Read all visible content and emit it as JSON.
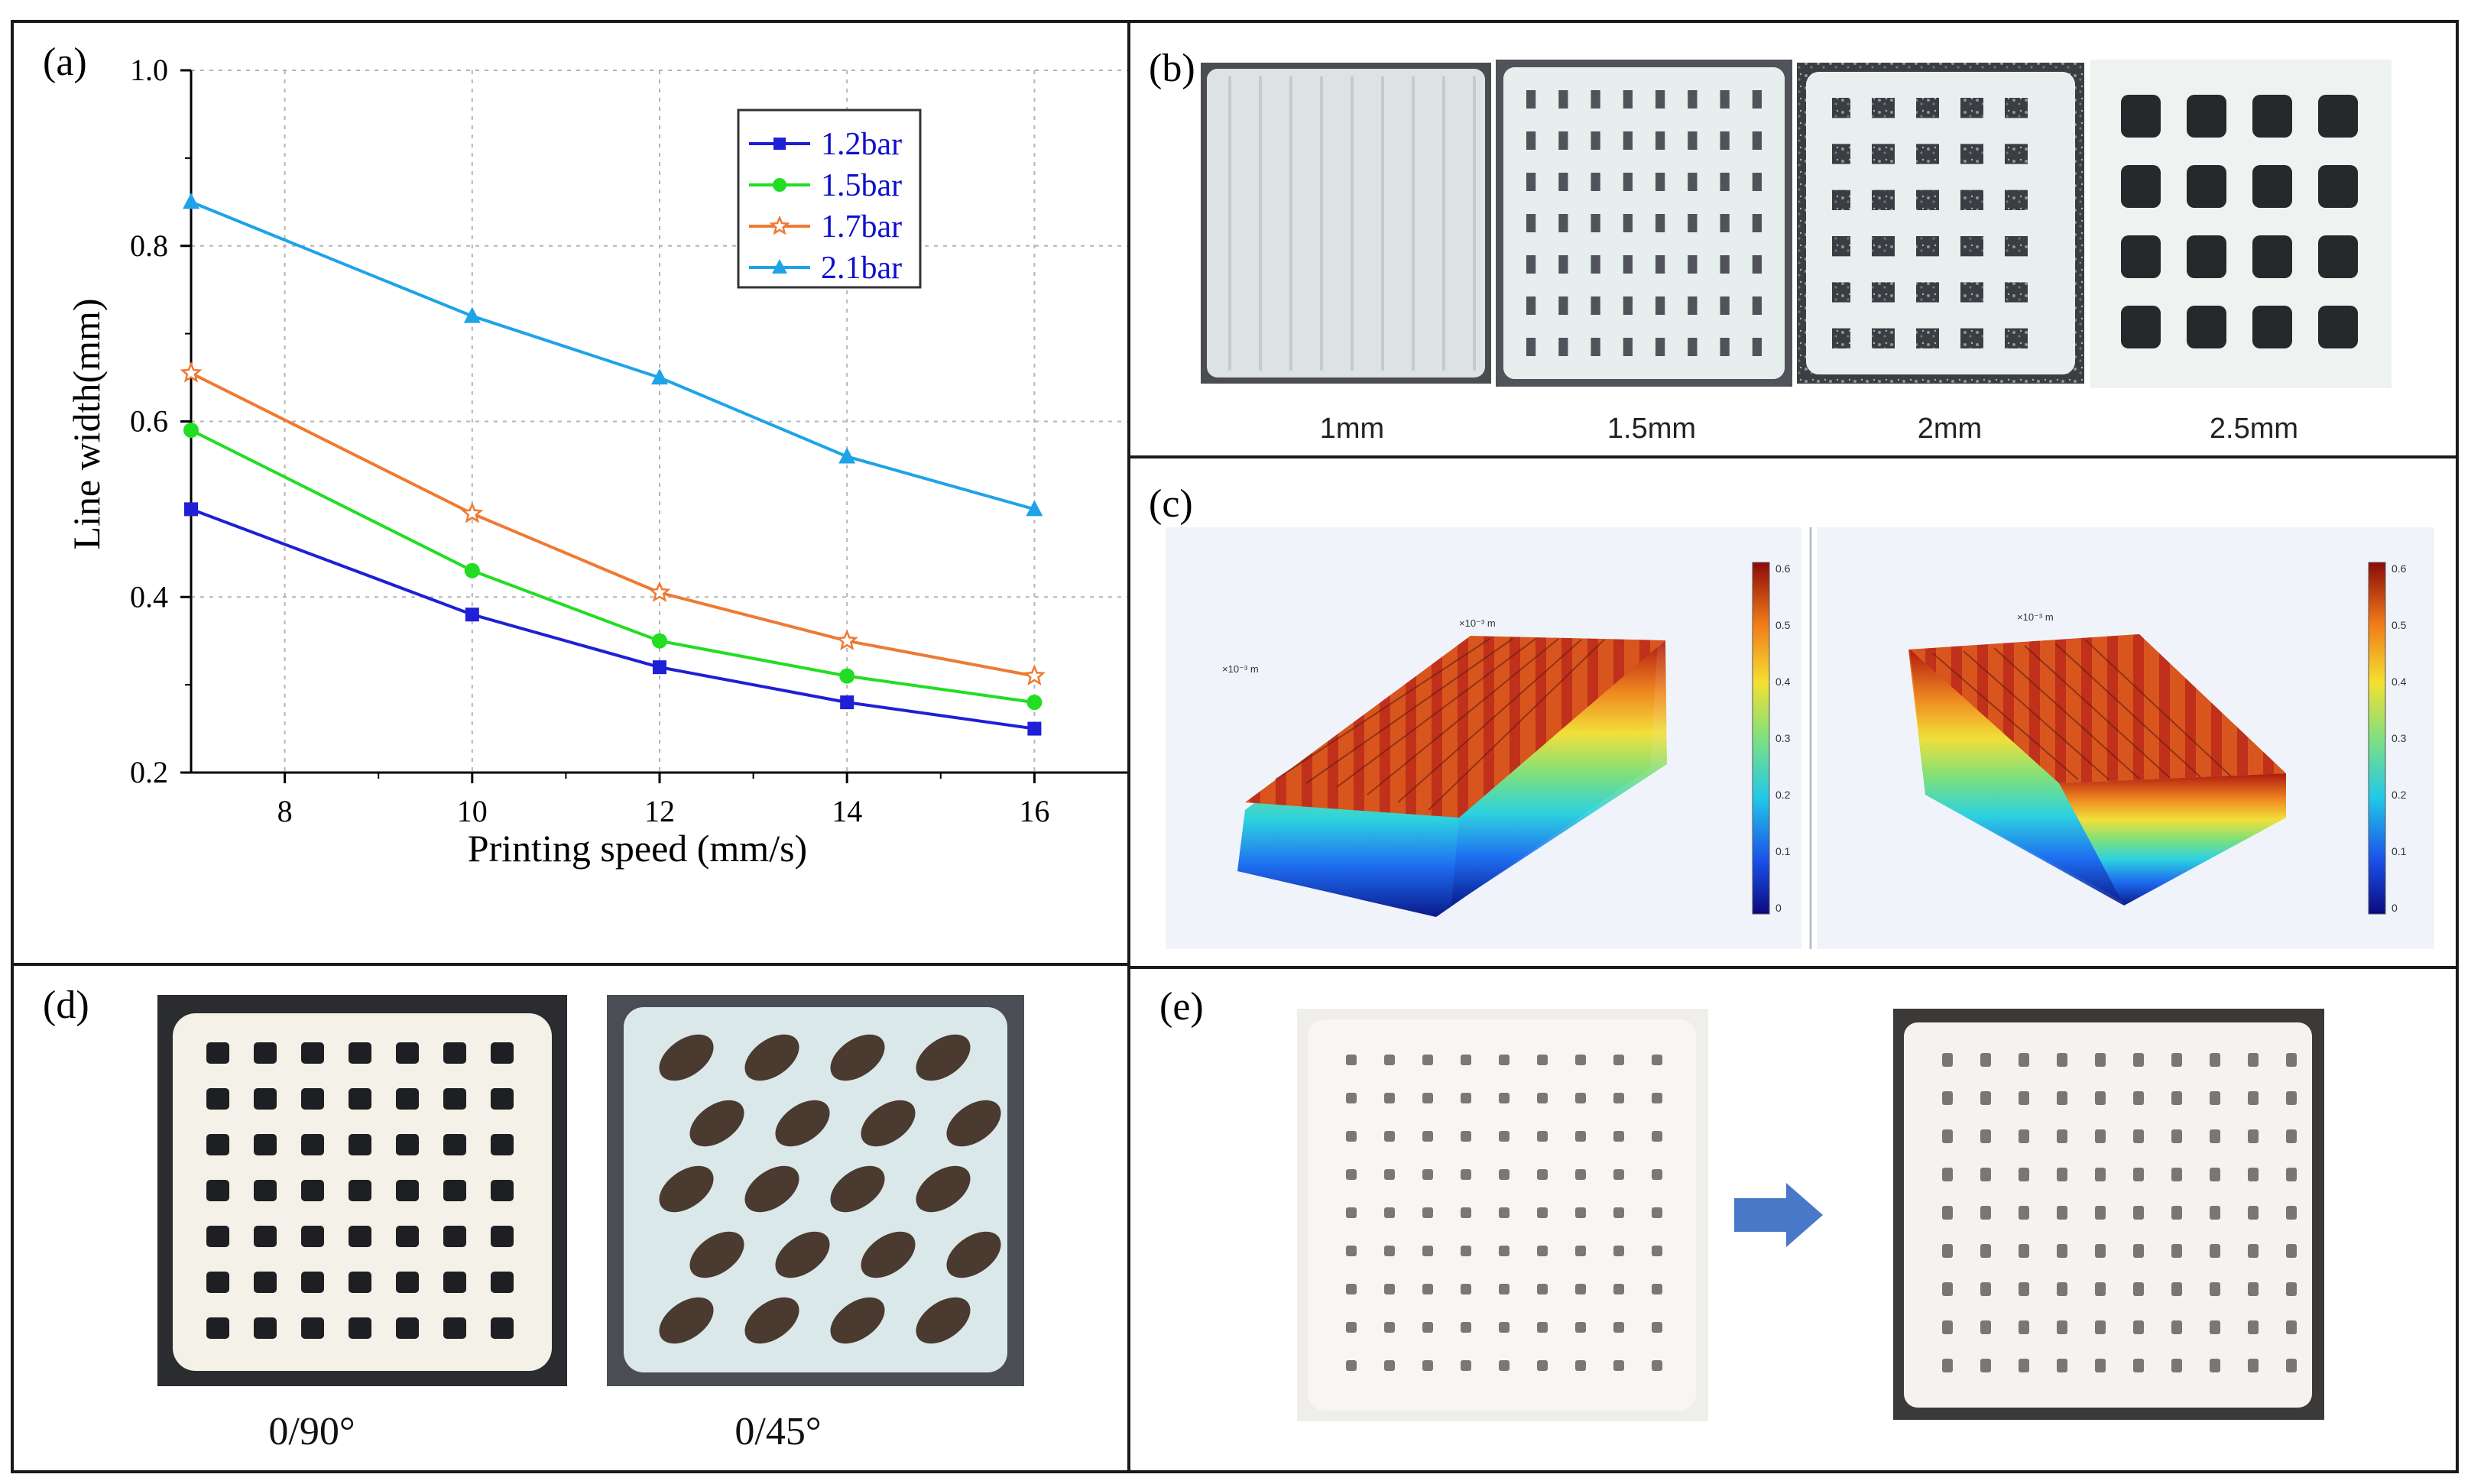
{
  "panels": {
    "a": {
      "label": "(a)"
    },
    "b": {
      "label": "(b)",
      "captions": [
        "1mm",
        "1.5mm",
        "2mm",
        "2.5mm"
      ]
    },
    "c": {
      "label": "(c)",
      "axis_unit": "×10⁻³ m",
      "colorbar_ticks": [
        "0.6",
        "0.5",
        "0.4",
        "0.3",
        "0.2",
        "0.1",
        "0"
      ]
    },
    "d": {
      "label": "(d)",
      "captions": [
        "0/90°",
        "0/45°"
      ]
    },
    "e": {
      "label": "(e)"
    }
  },
  "chart_data": {
    "type": "line",
    "xlabel": "Printing speed (mm/s)",
    "ylabel": "Line width(mm)",
    "xlim": [
      7,
      17
    ],
    "ylim": [
      0.2,
      1.0
    ],
    "xticks": [
      8,
      10,
      12,
      14,
      16
    ],
    "yticks": [
      0.2,
      0.4,
      0.6,
      0.8,
      1.0
    ],
    "ytick_labels": [
      "0.2",
      "0.4",
      "0.6",
      "0.8",
      "1.0"
    ],
    "x": [
      7,
      10,
      12,
      14,
      16
    ],
    "series": [
      {
        "name": "1.2bar",
        "color": "#1f1fd6",
        "marker": "square",
        "values": [
          0.5,
          0.38,
          0.32,
          0.28,
          0.25
        ]
      },
      {
        "name": "1.5bar",
        "color": "#22dd22",
        "marker": "circle",
        "values": [
          0.59,
          0.43,
          0.35,
          0.31,
          0.28
        ]
      },
      {
        "name": "1.7bar",
        "color": "#ee7a33",
        "marker": "star",
        "values": [
          0.655,
          0.495,
          0.405,
          0.35,
          0.31
        ]
      },
      {
        "name": "2.1bar",
        "color": "#1fa3e8",
        "marker": "triangle",
        "values": [
          0.85,
          0.72,
          0.65,
          0.56,
          0.5
        ]
      }
    ],
    "grid": true,
    "legend_position": "top-right",
    "legend_text_color": "#1010cc"
  }
}
